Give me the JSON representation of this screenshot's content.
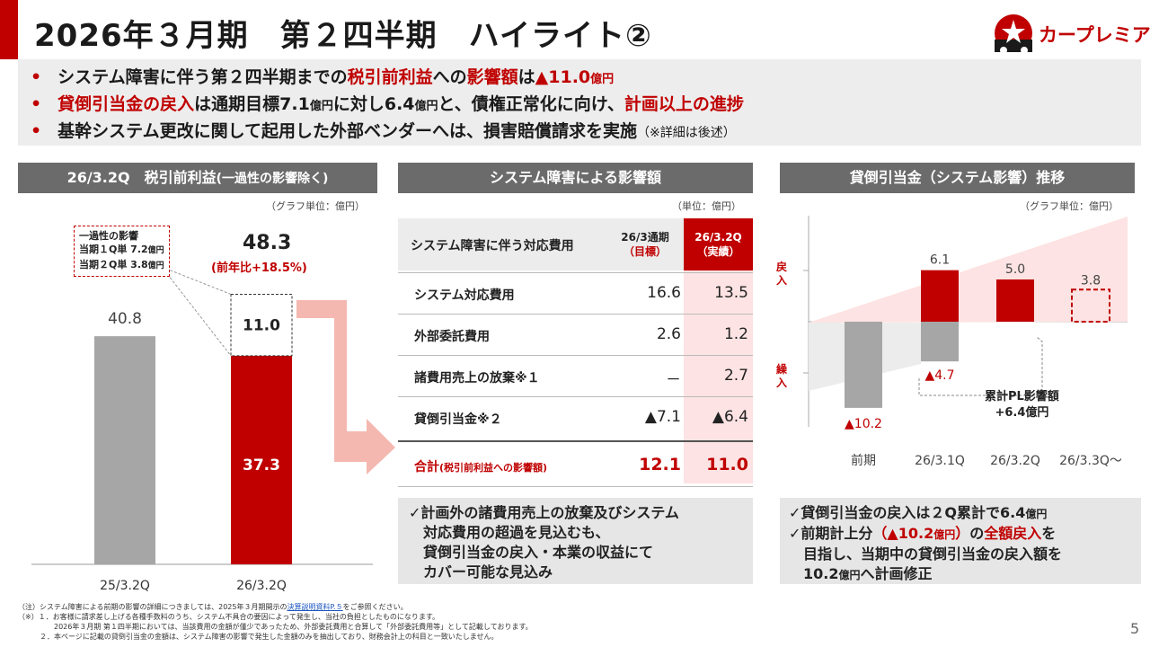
{
  "header": {
    "title": "2026年３月期　第２四半期　ハイライト②",
    "logo_text": "カープレミア",
    "page_number": "5"
  },
  "bullets": [
    {
      "a": "システム障害に伴う第２四半期までの",
      "b": "税引前利益",
      "c": "への",
      "d": "影響額",
      "e": "は",
      "f": "▲11.0",
      "g": "億円"
    },
    {
      "a": "貸倒引当金の戻入",
      "b": "は通期目標7.1",
      "c": "億円",
      "d": "に対し6.4",
      "e": "億円",
      "f": "と、債権正常化に向け、",
      "g": "計画以上の進捗"
    },
    {
      "a": "基幹システム更改に関して起用した外部ベンダーへは、損害賠償請求を実施",
      "b": "（※詳細は後述）"
    }
  ],
  "left_panel": {
    "header_main": "26/3.2Q　税引前利益",
    "header_sub": "(一過性の影響除く)",
    "unit": "（グラフ単位：億円）",
    "note_title": "一過性の影響",
    "note_line1_a": "当期１Q単 7.2",
    "note_line1_b": "億円",
    "note_line2_a": "当期２Q単 3.8",
    "note_line2_b": "億円",
    "total_label": "48.3",
    "yoy_label": "(前年比+18.5%)",
    "chart_data": {
      "type": "bar",
      "categories": [
        "25/3.2Q",
        "26/3.2Q"
      ],
      "series": [
        {
          "name": "税引前利益",
          "values": [
            40.8,
            37.3
          ]
        },
        {
          "name": "一過性の影響",
          "values": [
            0,
            11.0
          ]
        }
      ],
      "labels": [
        "40.8",
        "37.3",
        "11.0"
      ],
      "ylim": [
        0,
        55
      ]
    }
  },
  "mid_panel": {
    "header": "システム障害による影響額",
    "unit": "（単位：億円）",
    "col_label": "システム障害に伴う対応費用",
    "col1_a": "26/3通期",
    "col1_b": "（目標）",
    "col2_a": "26/3.2Q",
    "col2_b": "（実績）",
    "rows": [
      {
        "label": "システム対応費用",
        "target": "16.6",
        "actual": "13.5"
      },
      {
        "label": "外部委託費用",
        "target": "2.6",
        "actual": "1.2"
      },
      {
        "label": "諸費用売上の放棄※１",
        "target": "－",
        "actual": "2.7"
      },
      {
        "label": "貸倒引当金※２",
        "target": "▲7.1",
        "actual": "▲6.4"
      }
    ],
    "total_label_a": "合計",
    "total_label_b": "(税引前利益への影響額)",
    "total_target": "12.1",
    "total_actual": "11.0",
    "callout": [
      "✓計画外の諸費用売上の放棄及びシステム",
      "　対応費用の超過を見込むも、",
      "　貸倒引当金の戻入・本業の収益にて",
      "　カバー可能な見込み"
    ]
  },
  "right_panel": {
    "header": "貸倒引当金（システム影響）推移",
    "unit": "（グラフ単位：億円）",
    "axis_top": "戻入",
    "axis_bottom": "繰入",
    "cumulative_label": "累計PL影響額",
    "cumulative_value": "+6.4億円",
    "chart_data": {
      "type": "bar",
      "categories": [
        "前期",
        "26/3.1Q",
        "26/3.2Q",
        "26/3.3Q～"
      ],
      "series": [
        {
          "name": "戻入",
          "values": [
            0,
            6.1,
            5.0,
            3.8
          ]
        },
        {
          "name": "繰入",
          "values": [
            -10.2,
            -4.7,
            0,
            0
          ]
        }
      ],
      "labels": [
        "▲10.2",
        "6.1",
        "▲4.7",
        "5.0",
        "3.8"
      ],
      "ylim": [
        -11,
        9
      ]
    },
    "callout_line1_a": "✓貸倒引当金の戻入は２Q累計で6.4",
    "callout_line1_b": "億円",
    "callout_line2_a": "✓前期計上分",
    "callout_line2_b": "（▲10.2",
    "callout_line2_c": "億円",
    "callout_line2_d": "）",
    "callout_line2_e": "の",
    "callout_line2_f": "全額戻入",
    "callout_line2_g": "を",
    "callout_line3": "　目指し、当期中の貸倒引当金の戻入額を",
    "callout_line4_a": "　10.2",
    "callout_line4_b": "億円",
    "callout_line4_c": "へ計画修正"
  },
  "footnotes": {
    "line1_a": "（注）システム障害による前期の影響の詳細につきましては、2025年３月期開示の",
    "line1_link": "決算説明資料P.５",
    "line1_b": "をご参照ください。",
    "line2": "（※）１．お客様に請求差し上げる各種手数料のうち、システム不具合の要因によって発生し、当社の負担としたものになります。",
    "line3": "　　　　　2026年３月期 第１四半期においては、当該費用の金額が僅少であったため、外部委託費用と合算して「外部委託費用等」として記載しております。",
    "line4": "　　　２．本ページに記載の貸倒引当金の金額は、システム障害の影響で発生した金額のみを抽出しており、財務会計上の科目と一致いたしません。"
  },
  "colors": {
    "accent": "#c00000",
    "gray_bar": "#a6a6a6",
    "header_gray": "#6b6b6b",
    "band": "#ededed"
  }
}
